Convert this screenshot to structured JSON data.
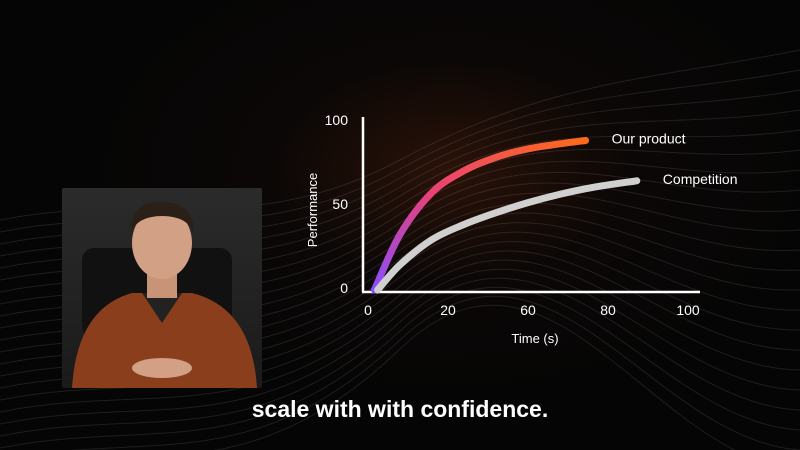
{
  "chart_data": {
    "type": "line",
    "xlabel": "Time (s)",
    "ylabel": "Performance",
    "x_tick_labels": [
      "0",
      "20",
      "60",
      "80",
      "100"
    ],
    "y_tick_labels": [
      "0",
      "50",
      "100"
    ],
    "xlim": [
      0,
      100
    ],
    "ylim": [
      0,
      100
    ],
    "grid": false,
    "legend": "inline labels at line ends",
    "series": [
      {
        "name": "Our product",
        "color_start": "#8a4dff",
        "color_mid": "#e8407a",
        "color_end": "#ff6a1a",
        "x": [
          2,
          10,
          20,
          30,
          40,
          50,
          60,
          68
        ],
        "y": [
          0,
          33,
          58,
          71,
          79,
          84,
          87,
          89
        ]
      },
      {
        "name": "Competition",
        "color": "#d0d0d0",
        "x": [
          3,
          10,
          20,
          30,
          40,
          50,
          60,
          70,
          84
        ],
        "y": [
          0,
          15,
          30,
          39,
          46,
          52,
          57,
          61,
          65
        ]
      }
    ]
  },
  "video": {
    "subtitle": "scale with with confidence."
  }
}
